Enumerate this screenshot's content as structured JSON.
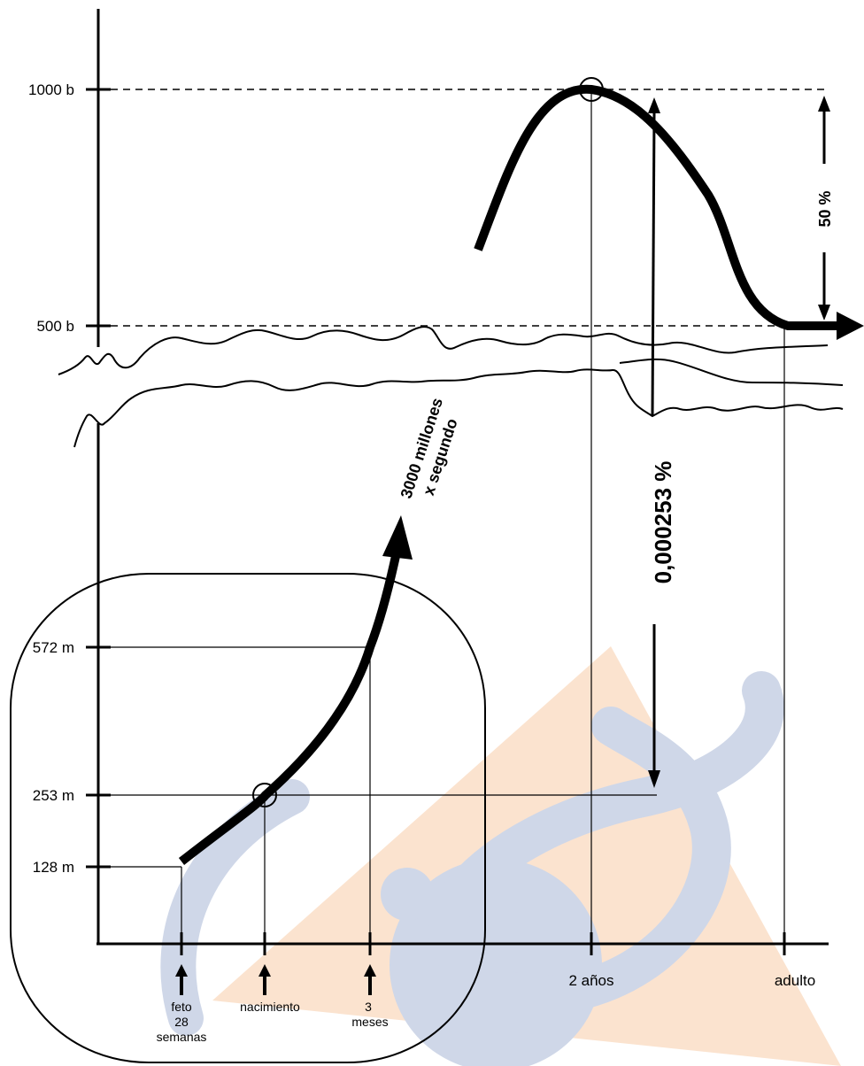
{
  "chart_data": {
    "type": "line",
    "title": "",
    "xlabel": "",
    "ylabel": "",
    "axis_break": true,
    "grid": false,
    "y_ticks": [
      {
        "label": "1000 b",
        "value": 1000000000000
      },
      {
        "label": "500 b",
        "value": 500000000000
      },
      {
        "label": "572 m",
        "value": 572000000
      },
      {
        "label": "253 m",
        "value": 253000000
      },
      {
        "label": "128 m",
        "value": 128000000
      }
    ],
    "x_ticks": [
      {
        "key": "feto",
        "lines": [
          "feto",
          "28",
          "semanas"
        ]
      },
      {
        "key": "nacimiento",
        "lines": [
          "nacimiento"
        ]
      },
      {
        "key": "3meses",
        "lines": [
          "3",
          "meses"
        ]
      },
      {
        "key": "2anos",
        "lines": [
          "2 años"
        ]
      },
      {
        "key": "adulto",
        "lines": [
          "adulto"
        ]
      }
    ],
    "series": [
      {
        "segment": "lower",
        "points": [
          {
            "x": "feto",
            "y": 128000000
          },
          {
            "x": "nacimiento",
            "y": 253000000
          },
          {
            "x": "3meses",
            "y": 572000000
          }
        ]
      },
      {
        "segment": "upper",
        "points": [
          {
            "x": "2anos",
            "y": 1000000000000
          },
          {
            "x": "adulto",
            "y": 500000000000
          }
        ]
      }
    ],
    "annotations": {
      "rate": [
        "3000 millones",
        "x segundo"
      ],
      "ratio": "0,000253 %",
      "decline": "50 %"
    }
  }
}
